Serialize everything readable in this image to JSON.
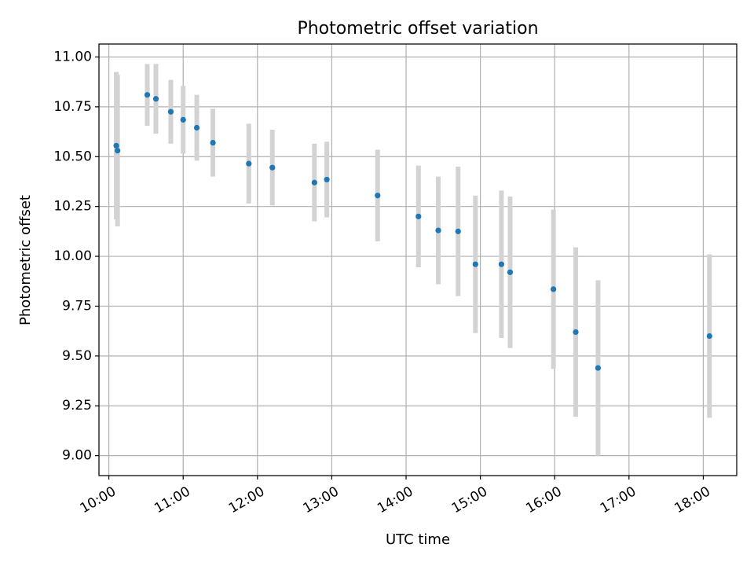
{
  "chart_data": {
    "type": "scatter",
    "title": "Photometric offset variation",
    "xlabel": "UTC time",
    "ylabel": "Photometric offset",
    "xlim": [
      "09:52",
      "18:27"
    ],
    "ylim": [
      8.9,
      11.065
    ],
    "grid": true,
    "x_ticks": [
      "10:00",
      "11:00",
      "12:00",
      "13:00",
      "14:00",
      "15:00",
      "16:00",
      "17:00",
      "18:00"
    ],
    "y_ticks": [
      "9.00",
      "9.25",
      "9.50",
      "9.75",
      "10.00",
      "10.25",
      "10.50",
      "10.75",
      "11.00"
    ],
    "colors": {
      "point": "#1f77b4",
      "errorbar": "#d3d3d3",
      "grid": "#b0b0b0"
    },
    "points": [
      {
        "t": "10:06",
        "y": 10.555,
        "err": 0.37
      },
      {
        "t": "10:07",
        "y": 10.53,
        "err": 0.38
      },
      {
        "t": "10:31",
        "y": 10.81,
        "err": 0.155
      },
      {
        "t": "10:38",
        "y": 10.79,
        "err": 0.175
      },
      {
        "t": "10:50",
        "y": 10.725,
        "err": 0.16
      },
      {
        "t": "11:00",
        "y": 10.685,
        "err": 0.17
      },
      {
        "t": "11:11",
        "y": 10.645,
        "err": 0.165
      },
      {
        "t": "11:24",
        "y": 10.57,
        "err": 0.17
      },
      {
        "t": "11:53",
        "y": 10.465,
        "err": 0.2
      },
      {
        "t": "12:12",
        "y": 10.445,
        "err": 0.19
      },
      {
        "t": "12:46",
        "y": 10.37,
        "err": 0.195
      },
      {
        "t": "12:56",
        "y": 10.385,
        "err": 0.19
      },
      {
        "t": "13:37",
        "y": 10.305,
        "err": 0.23
      },
      {
        "t": "14:10",
        "y": 10.2,
        "err": 0.255
      },
      {
        "t": "14:26",
        "y": 10.13,
        "err": 0.27
      },
      {
        "t": "14:42",
        "y": 10.125,
        "err": 0.325
      },
      {
        "t": "14:56",
        "y": 9.96,
        "err": 0.345
      },
      {
        "t": "15:17",
        "y": 9.96,
        "err": 0.37
      },
      {
        "t": "15:24",
        "y": 9.92,
        "err": 0.38
      },
      {
        "t": "15:59",
        "y": 9.835,
        "err": 0.4
      },
      {
        "t": "16:17",
        "y": 9.62,
        "err": 0.425
      },
      {
        "t": "16:35",
        "y": 9.44,
        "err": 0.44
      },
      {
        "t": "18:05",
        "y": 9.6,
        "err": 0.41
      }
    ]
  }
}
